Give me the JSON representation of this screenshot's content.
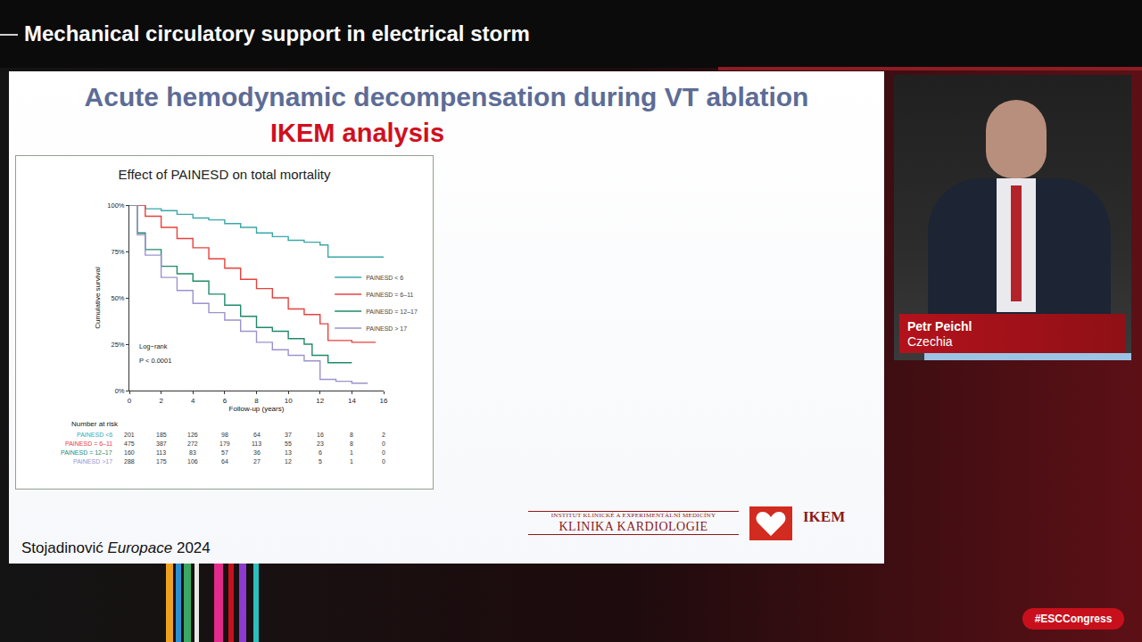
{
  "page": {
    "banner": "Mechanical circulatory support in electrical storm",
    "slide_title": "Acute hemodynamic decompensation during VT ablation",
    "slide_subtitle": "IKEM analysis",
    "citation_author": "Stojadinović",
    "citation_journal": "Europace",
    "citation_year": "2024",
    "logo_line1": "INSTITUT KLINICKÉ A EXPERIMENTÁLNÍ MEDICÍNY",
    "logo_line2": "KLINIKA KARDIOLOGIE",
    "logo_mark": "IKEM",
    "speaker_name": "Petr Peichl",
    "speaker_country": "Czechia",
    "hashtag": "#ESCCongress"
  },
  "chart_data": {
    "type": "line",
    "title": "Effect of PAINESD on total mortality",
    "x_label": "Follow-up (years)",
    "y_label": "Cumulative survival",
    "xlim": [
      0,
      16
    ],
    "xticks": [
      0,
      2,
      4,
      6,
      8,
      10,
      12,
      14,
      16
    ],
    "ylim": [
      0,
      100
    ],
    "yticks": [
      {
        "value": 0,
        "label": "0%"
      },
      {
        "value": 25,
        "label": "25%"
      },
      {
        "value": 50,
        "label": "50%"
      },
      {
        "value": 75,
        "label": "75%"
      },
      {
        "value": 100,
        "label": "100%"
      }
    ],
    "grid": false,
    "legend": "right",
    "line_style": "step",
    "series": [
      {
        "name": "PAINESD < 6",
        "color": "#3aa8a8",
        "x": [
          0,
          1,
          2,
          3,
          4,
          5,
          6,
          7,
          8,
          9,
          10,
          11,
          12,
          12.5,
          14,
          16
        ],
        "values": [
          100,
          98,
          97,
          95,
          93,
          92,
          90,
          88,
          85,
          83,
          81,
          80,
          78.5,
          72,
          72,
          72
        ]
      },
      {
        "name": "PAINESD = 6–11",
        "color": "#e8413c",
        "x": [
          0,
          1,
          2,
          3,
          4,
          5,
          6,
          7,
          8,
          9,
          10,
          11,
          12,
          12.5,
          14,
          15.5
        ],
        "values": [
          100,
          94,
          88,
          82,
          77,
          71,
          66,
          60,
          55,
          50,
          44,
          41,
          36,
          27,
          26,
          26
        ]
      },
      {
        "name": "PAINESD = 12–17",
        "color": "#1f8a6a",
        "x": [
          0,
          0.5,
          1,
          2,
          3,
          4,
          5,
          6,
          7,
          8,
          9,
          10,
          11,
          11.5,
          12.5,
          14
        ],
        "values": [
          100,
          85,
          76,
          67,
          63,
          59,
          52,
          46,
          40,
          34,
          32,
          28,
          25,
          19,
          15,
          15
        ]
      },
      {
        "name": "PAINESD > 17",
        "color": "#9b93cc",
        "x": [
          0,
          0.5,
          1,
          2,
          3,
          4,
          5,
          6,
          7,
          8,
          9,
          10,
          11,
          12,
          13,
          14,
          15
        ],
        "values": [
          100,
          84,
          73,
          61,
          54,
          47,
          42,
          38,
          32,
          26,
          22,
          19,
          16,
          6,
          5,
          4,
          4
        ]
      }
    ],
    "annotations": [
      "Log−rank",
      "P < 0.0001"
    ],
    "risk_table": {
      "title": "Number at risk",
      "rows": [
        {
          "label": "PAINESD <6",
          "color": "#3aa8a8",
          "values": [
            201,
            185,
            126,
            98,
            64,
            37,
            16,
            8,
            2
          ]
        },
        {
          "label": "PAINESD = 6–11",
          "color": "#e8413c",
          "values": [
            475,
            387,
            272,
            179,
            113,
            55,
            23,
            8,
            0
          ]
        },
        {
          "label": "PAINESD = 12–17",
          "color": "#1f8a6a",
          "values": [
            160,
            113,
            83,
            57,
            36,
            13,
            6,
            1,
            0
          ]
        },
        {
          "label": "PAINESD >17",
          "color": "#9b93cc",
          "values": [
            288,
            175,
            106,
            64,
            27,
            12,
            5,
            1,
            0
          ]
        }
      ]
    }
  }
}
